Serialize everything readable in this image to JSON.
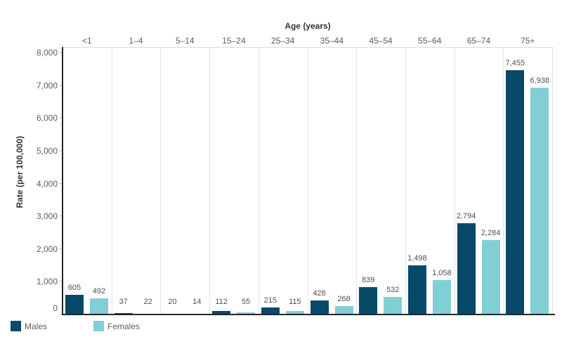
{
  "chart_data": {
    "type": "bar",
    "title": "",
    "xlabel": "Age (years)",
    "ylabel": "Rate (per 100,000)",
    "xaxis_position": "top",
    "categories": [
      "<1",
      "1–4",
      "5–14",
      "15–24",
      "25–34",
      "35–44",
      "45–54",
      "55–64",
      "65–74",
      "75+"
    ],
    "series": [
      {
        "name": "Males",
        "color": "#074969",
        "values": [
          605,
          37,
          20,
          112,
          215,
          428,
          839,
          1498,
          2794,
          7455
        ],
        "labels": [
          "605",
          "37",
          "20",
          "112",
          "215",
          "428",
          "839",
          "1,498",
          "2,794",
          "7,455"
        ]
      },
      {
        "name": "Females",
        "color": "#82ced5",
        "values": [
          492,
          22,
          14,
          55,
          115,
          268,
          532,
          1058,
          2284,
          6938
        ],
        "labels": [
          "492",
          "22",
          "14",
          "55",
          "115",
          "268",
          "532",
          "1,058",
          "2,284",
          "6,938"
        ]
      }
    ],
    "ylim": [
      0,
      8000
    ],
    "ytick_step": 1000,
    "ytick_labels": [
      "0",
      "1,000",
      "2,000",
      "3,000",
      "4,000",
      "5,000",
      "6,000",
      "7,000",
      "8,000"
    ],
    "grid": "vertical-column-separators",
    "legend_position": "bottom-left"
  },
  "legend": {
    "items": [
      {
        "label": "Males",
        "color": "#074969"
      },
      {
        "label": "Females",
        "color": "#82ced5"
      }
    ]
  }
}
